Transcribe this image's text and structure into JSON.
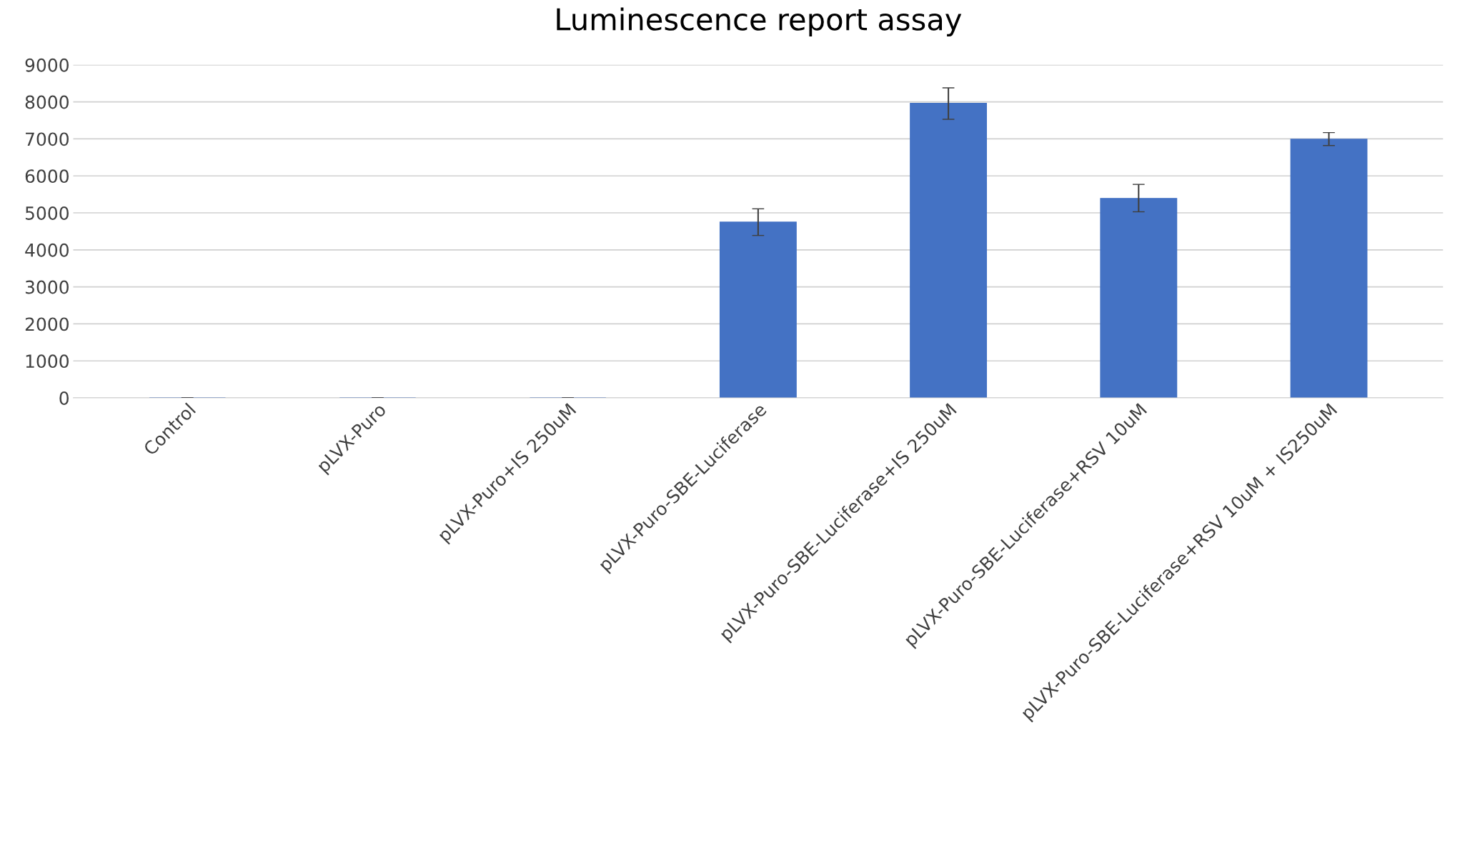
{
  "chart_data": {
    "type": "bar",
    "title": "Luminescence report assay",
    "categories": [
      "Control",
      "pLVX-Puro",
      "pLVX-Puro+IS 250uM",
      "pLVX-Puro-SBE-Luciferase",
      "pLVX-Puro-SBE-Luciferase+IS 250uM",
      "pLVX-Puro-SBE-Luciferase+RSV 10uM",
      "pLVX-Puro-SBE-Luciferase+RSV 10uM + IS250uM"
    ],
    "values": [
      0,
      0,
      0,
      4750,
      7960,
      5390,
      6990
    ],
    "errors": [
      0,
      0,
      0,
      [
        4390,
        5110
      ],
      [
        7530,
        8380
      ],
      [
        5030,
        5770
      ],
      [
        6820,
        7170
      ]
    ],
    "color": "#4472c4",
    "ylim": [
      0,
      9000
    ],
    "yticks": [
      0,
      1000,
      2000,
      3000,
      4000,
      5000,
      6000,
      7000,
      8000,
      9000
    ],
    "grid": "y"
  }
}
